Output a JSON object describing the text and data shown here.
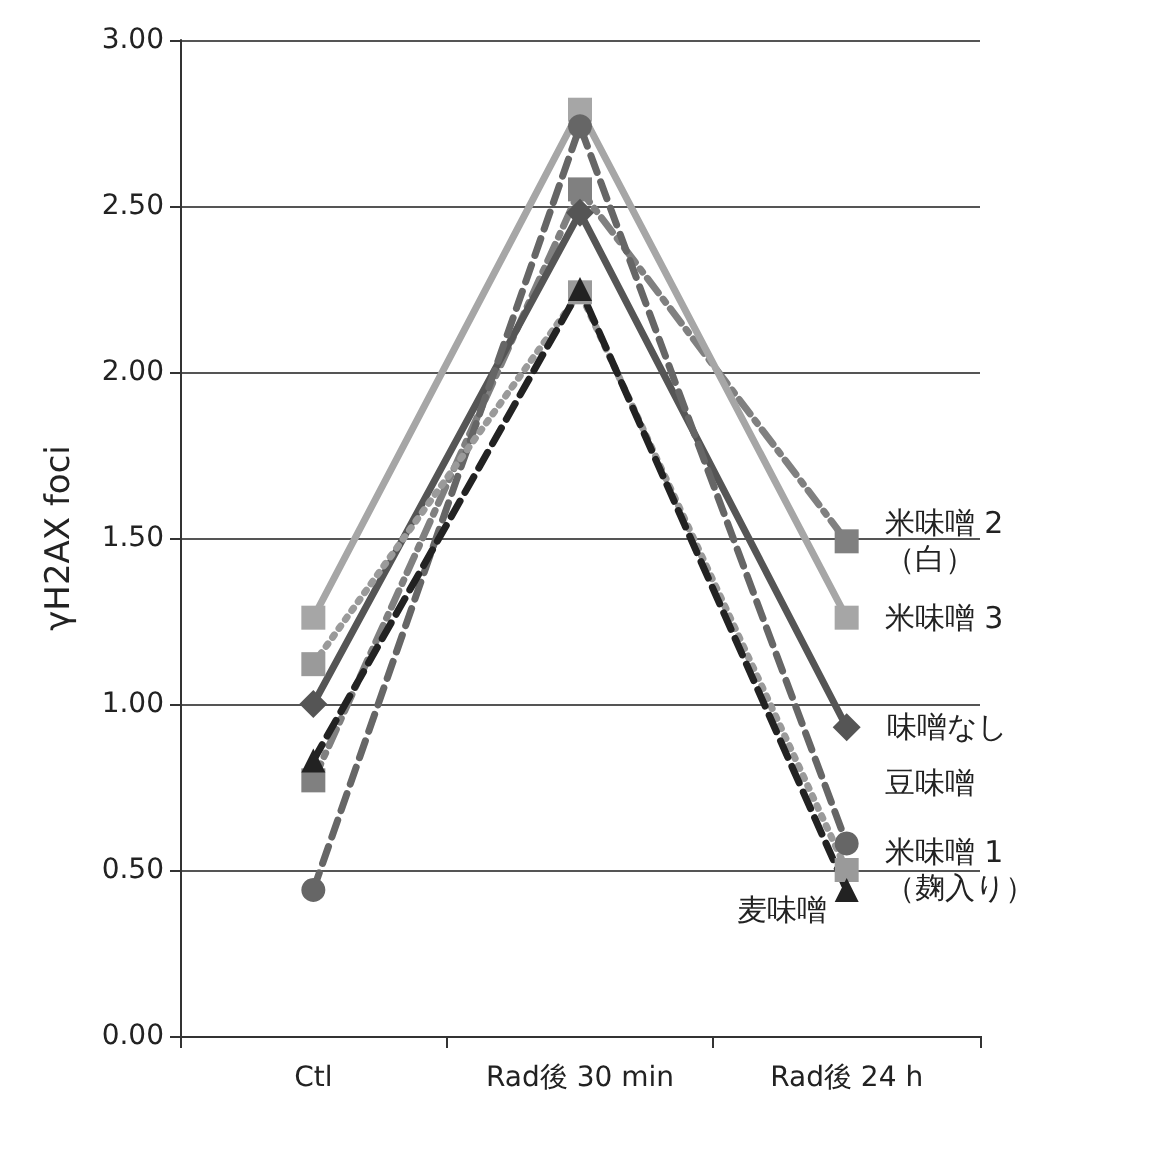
{
  "chart_data": {
    "type": "line",
    "ylabel": "γH2AX foci",
    "categories": [
      "Ctl",
      "Rad後 30 min",
      "Rad後 24 h"
    ],
    "series": [
      {
        "name": "米味噌 2\n（白）",
        "color": "#808080",
        "values": [
          0.77,
          2.55,
          1.49
        ],
        "marker": "square",
        "line_style": "dashdot"
      },
      {
        "name": "米味噌 3",
        "color": "#a6a6a6",
        "values": [
          1.26,
          2.79,
          1.26
        ],
        "marker": "square",
        "line_style": "solid"
      },
      {
        "name": "味噌なし",
        "color": "#555555",
        "values": [
          1.0,
          2.48,
          0.93
        ],
        "marker": "diamond",
        "line_style": "solid"
      },
      {
        "name": "豆味噌",
        "color": "#666666",
        "values": [
          0.44,
          2.74,
          0.58
        ],
        "marker": "circle",
        "line_style": "dashed"
      },
      {
        "name": "米味噌 1\n（麹入り）",
        "color": "#9a9a9a",
        "values": [
          1.12,
          2.24,
          0.5
        ],
        "marker": "square",
        "line_style": "dotted"
      },
      {
        "name": "麦味噌",
        "color": "#222222",
        "values": [
          0.83,
          2.25,
          0.44
        ],
        "marker": "triangle",
        "line_style": "dashed"
      }
    ],
    "ylim": [
      0,
      3
    ],
    "yticks": [
      {
        "value": 0,
        "label": "0.00"
      },
      {
        "value": 0.5,
        "label": "0.50"
      },
      {
        "value": 1,
        "label": "1.00"
      },
      {
        "value": 1.5,
        "label": "1.50"
      },
      {
        "value": 2,
        "label": "2.00"
      },
      {
        "value": 2.5,
        "label": "2.50"
      },
      {
        "value": 3,
        "label": "3.00"
      }
    ],
    "grid": "y",
    "legend": false
  }
}
